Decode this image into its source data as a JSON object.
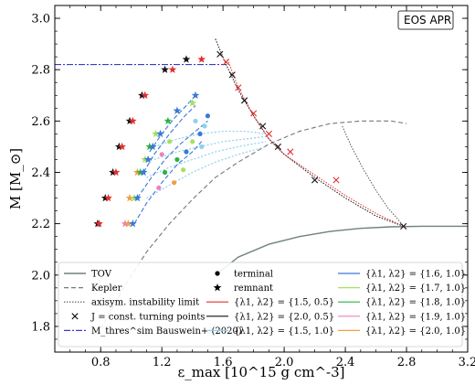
{
  "chart_data": {
    "type": "line",
    "title": "",
    "annotation": "EOS APR",
    "xlabel": "ε_max [10^15 g cm^-3]",
    "ylabel": "M [M_⊙]",
    "xlim": [
      0.5,
      3.2
    ],
    "ylim": [
      1.7,
      3.05
    ],
    "xticks": [
      0.8,
      1.2,
      1.6,
      2.0,
      2.4,
      2.8,
      3.2
    ],
    "yticks": [
      1.8,
      2.0,
      2.2,
      2.4,
      2.6,
      2.8,
      3.0
    ],
    "legend_position": "bottom",
    "legend": {
      "tov": "TOV",
      "kepler": "Kepler",
      "axisym": "axisym. instability limit",
      "mthres": "M_thres^sim Bauswein+ (2020)",
      "terminal": "terminal",
      "remnant": "remnant",
      "turning": "J = const. turning points",
      "l15_05": "{λ1, λ2} = {1.5, 0.5}",
      "l20_05": "{λ1, λ2} = {2.0, 0.5}",
      "l15_10": "{λ1, λ2} = {1.5, 1.0}",
      "l16_10": "{λ1, λ2} = {1.6, 1.0}",
      "l17_10": "{λ1, λ2} = {1.7, 1.0}",
      "l18_10": "{λ1, λ2} = {1.8, 1.0}",
      "l19_10": "{λ1, λ2} = {1.9, 1.0}",
      "l20_10": "{λ1, λ2} = {2.0, 1.0}"
    },
    "colors": {
      "tov": "#6f8080",
      "kepler": "#777777",
      "axisym": "#555555",
      "mthres": "#3a3ad0",
      "l15_05": "#e03030",
      "l20_05": "#111111",
      "l15_10": "#8fd0ee",
      "l16_10": "#3a78d6",
      "l17_10": "#a4e060",
      "l18_10": "#30b040",
      "l19_10": "#ee80c0",
      "l20_10": "#f0a040"
    },
    "series": {
      "tov": {
        "x": [
          1.55,
          1.7,
          1.9,
          2.1,
          2.3,
          2.5,
          2.7,
          2.9,
          3.1,
          3.2
        ],
        "y": [
          2.0,
          2.07,
          2.12,
          2.15,
          2.17,
          2.182,
          2.188,
          2.19,
          2.19,
          2.19
        ]
      },
      "kepler": {
        "x": [
          0.8,
          0.95,
          1.1,
          1.25,
          1.4,
          1.55,
          1.7,
          1.9,
          2.1,
          2.3,
          2.5,
          2.7,
          2.8
        ],
        "y": [
          1.79,
          1.95,
          2.09,
          2.2,
          2.295,
          2.38,
          2.44,
          2.51,
          2.56,
          2.59,
          2.6,
          2.6,
          2.59
        ]
      },
      "axisym": {
        "x": [
          2.38,
          2.44,
          2.52,
          2.6,
          2.68,
          2.74,
          2.78
        ],
        "y": [
          2.58,
          2.5,
          2.41,
          2.33,
          2.26,
          2.22,
          2.19
        ]
      },
      "mthres": {
        "x": [
          0.5,
          1.55,
          1.62
        ],
        "y": [
          2.82,
          2.82,
          2.82
        ]
      },
      "red_dotted": {
        "x": [
          1.63,
          1.7,
          1.8,
          1.9,
          2.0,
          2.2,
          2.4,
          2.6,
          2.78
        ],
        "y": [
          2.84,
          2.73,
          2.62,
          2.53,
          2.47,
          2.39,
          2.31,
          2.24,
          2.19
        ]
      },
      "black_dotted": {
        "x": [
          1.55,
          1.62,
          1.7,
          1.8,
          1.9,
          2.0,
          2.2,
          2.4,
          2.6,
          2.78
        ],
        "y": [
          2.92,
          2.82,
          2.72,
          2.62,
          2.53,
          2.47,
          2.38,
          2.3,
          2.23,
          2.19
        ]
      },
      "blue_dashed": [
        {
          "x": [
            1.02,
            1.1,
            1.2,
            1.3,
            1.4,
            1.46
          ],
          "y": [
            2.2,
            2.28,
            2.36,
            2.43,
            2.48,
            2.52
          ]
        },
        {
          "x": [
            1.04,
            1.12,
            1.22,
            1.32,
            1.42,
            1.5
          ],
          "y": [
            2.3,
            2.37,
            2.45,
            2.51,
            2.56,
            2.6
          ]
        },
        {
          "x": [
            1.08,
            1.15,
            1.25,
            1.35,
            1.42
          ],
          "y": [
            2.4,
            2.47,
            2.55,
            2.62,
            2.66
          ]
        },
        {
          "x": [
            1.12,
            1.2,
            1.28,
            1.36,
            1.42
          ],
          "y": [
            2.48,
            2.55,
            2.61,
            2.66,
            2.7
          ]
        }
      ],
      "cyan_dotted": [
        {
          "x": [
            1.15,
            1.3,
            1.45,
            1.6,
            1.75,
            1.88
          ],
          "y": [
            2.5,
            2.53,
            2.55,
            2.56,
            2.56,
            2.55
          ]
        },
        {
          "x": [
            1.15,
            1.3,
            1.45,
            1.6,
            1.75,
            1.88
          ],
          "y": [
            2.45,
            2.48,
            2.5,
            2.52,
            2.53,
            2.54
          ]
        },
        {
          "x": [
            1.1,
            1.25,
            1.4,
            1.55,
            1.7,
            1.88
          ],
          "y": [
            2.38,
            2.42,
            2.45,
            2.48,
            2.5,
            2.52
          ]
        },
        {
          "x": [
            1.1,
            1.25,
            1.4,
            1.55,
            1.7,
            1.88
          ],
          "y": [
            2.3,
            2.35,
            2.4,
            2.44,
            2.47,
            2.5
          ]
        }
      ]
    },
    "remnant_stars": [
      {
        "x": 0.78,
        "y": 2.2,
        "c": "l20_05"
      },
      {
        "x": 0.79,
        "y": 2.2,
        "c": "l15_05"
      },
      {
        "x": 0.83,
        "y": 2.3,
        "c": "l20_05"
      },
      {
        "x": 0.85,
        "y": 2.3,
        "c": "l15_05"
      },
      {
        "x": 0.88,
        "y": 2.4,
        "c": "l20_05"
      },
      {
        "x": 0.9,
        "y": 2.4,
        "c": "l15_05"
      },
      {
        "x": 0.92,
        "y": 2.5,
        "c": "l20_05"
      },
      {
        "x": 0.94,
        "y": 2.5,
        "c": "l15_05"
      },
      {
        "x": 0.99,
        "y": 2.6,
        "c": "l20_05"
      },
      {
        "x": 1.01,
        "y": 2.6,
        "c": "l15_05"
      },
      {
        "x": 1.07,
        "y": 2.7,
        "c": "l20_05"
      },
      {
        "x": 1.09,
        "y": 2.7,
        "c": "l15_05"
      },
      {
        "x": 1.22,
        "y": 2.8,
        "c": "l20_05"
      },
      {
        "x": 1.27,
        "y": 2.8,
        "c": "l15_05"
      },
      {
        "x": 1.36,
        "y": 2.84,
        "c": "l20_05"
      },
      {
        "x": 1.46,
        "y": 2.84,
        "c": "l15_05"
      },
      {
        "x": 0.96,
        "y": 2.2,
        "c": "l19_10"
      },
      {
        "x": 0.98,
        "y": 2.2,
        "c": "l20_10"
      },
      {
        "x": 1.01,
        "y": 2.2,
        "c": "l16_10"
      },
      {
        "x": 0.99,
        "y": 2.3,
        "c": "l20_10"
      },
      {
        "x": 1.02,
        "y": 2.3,
        "c": "l17_10"
      },
      {
        "x": 1.04,
        "y": 2.3,
        "c": "l16_10"
      },
      {
        "x": 1.04,
        "y": 2.4,
        "c": "l20_10"
      },
      {
        "x": 1.06,
        "y": 2.4,
        "c": "l18_10"
      },
      {
        "x": 1.08,
        "y": 2.4,
        "c": "l16_10"
      },
      {
        "x": 1.09,
        "y": 2.45,
        "c": "l17_10"
      },
      {
        "x": 1.11,
        "y": 2.45,
        "c": "l16_10"
      },
      {
        "x": 1.12,
        "y": 2.5,
        "c": "l18_10"
      },
      {
        "x": 1.14,
        "y": 2.5,
        "c": "l16_10"
      },
      {
        "x": 1.16,
        "y": 2.55,
        "c": "l17_10"
      },
      {
        "x": 1.19,
        "y": 2.55,
        "c": "l16_10"
      },
      {
        "x": 1.24,
        "y": 2.6,
        "c": "l18_10"
      },
      {
        "x": 1.3,
        "y": 2.64,
        "c": "l16_10"
      },
      {
        "x": 1.42,
        "y": 2.7,
        "c": "l16_10"
      },
      {
        "x": 1.4,
        "y": 2.67,
        "c": "l17_10"
      }
    ],
    "terminal_dots": [
      {
        "x": 1.22,
        "y": 2.4,
        "c": "l18_10"
      },
      {
        "x": 1.3,
        "y": 2.45,
        "c": "l18_10"
      },
      {
        "x": 1.18,
        "y": 2.34,
        "c": "l19_10"
      },
      {
        "x": 1.36,
        "y": 2.48,
        "c": "l16_10"
      },
      {
        "x": 1.4,
        "y": 2.52,
        "c": "l17_10"
      },
      {
        "x": 1.45,
        "y": 2.55,
        "c": "l16_10"
      },
      {
        "x": 1.48,
        "y": 2.58,
        "c": "l15_10"
      },
      {
        "x": 1.5,
        "y": 2.62,
        "c": "l16_10"
      },
      {
        "x": 1.46,
        "y": 2.5,
        "c": "l15_10"
      },
      {
        "x": 1.34,
        "y": 2.41,
        "c": "l17_10"
      },
      {
        "x": 1.28,
        "y": 2.36,
        "c": "l20_10"
      },
      {
        "x": 1.25,
        "y": 2.52,
        "c": "l17_10"
      },
      {
        "x": 1.2,
        "y": 2.47,
        "c": "l19_10"
      },
      {
        "x": 1.42,
        "y": 2.6,
        "c": "l15_10"
      }
    ],
    "turning_points": [
      {
        "x": 1.58,
        "y": 2.86,
        "c": "l20_05"
      },
      {
        "x": 1.62,
        "y": 2.83,
        "c": "l15_05"
      },
      {
        "x": 1.66,
        "y": 2.78,
        "c": "l20_05"
      },
      {
        "x": 1.7,
        "y": 2.73,
        "c": "l15_05"
      },
      {
        "x": 1.74,
        "y": 2.68,
        "c": "l20_05"
      },
      {
        "x": 1.8,
        "y": 2.63,
        "c": "l15_05"
      },
      {
        "x": 1.86,
        "y": 2.58,
        "c": "l20_05"
      },
      {
        "x": 1.9,
        "y": 2.55,
        "c": "l15_05"
      },
      {
        "x": 1.96,
        "y": 2.5,
        "c": "l20_05"
      },
      {
        "x": 2.04,
        "y": 2.48,
        "c": "l15_05"
      },
      {
        "x": 2.2,
        "y": 2.37,
        "c": "l20_05"
      },
      {
        "x": 2.34,
        "y": 2.37,
        "c": "l15_05"
      },
      {
        "x": 2.78,
        "y": 2.19,
        "c": "l20_05"
      }
    ]
  }
}
